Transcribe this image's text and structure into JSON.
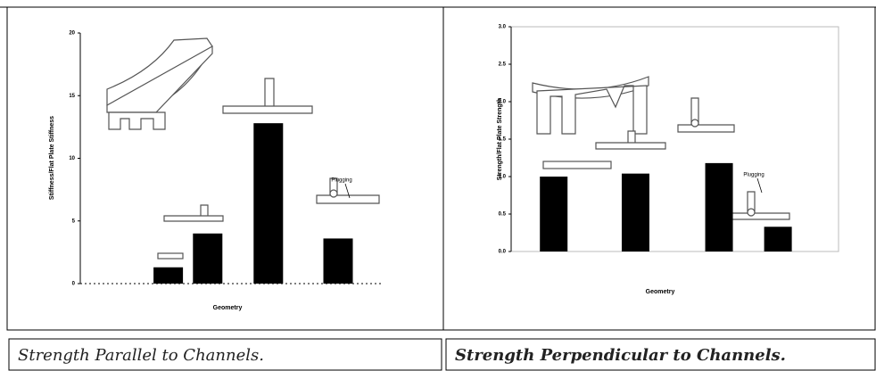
{
  "chart_data": [
    {
      "type": "bar",
      "ylabel": "Stiffness/Flat Plate Stiffness",
      "xlabel": "Geometry",
      "categories": [
        null,
        null,
        null,
        null
      ],
      "values": [
        1.3,
        4.0,
        12.8,
        3.6
      ],
      "color": "#000000",
      "ylim": [
        0,
        20
      ],
      "yticks": [
        0,
        5,
        10,
        15,
        20
      ],
      "grid": false,
      "annotation": "Plugging"
    },
    {
      "type": "bar",
      "ylabel": "Strength/Flat Plate Strength",
      "xlabel": "Geometry",
      "categories": [
        null,
        null,
        null,
        null
      ],
      "values": [
        1.0,
        1.04,
        1.18,
        0.33
      ],
      "color": "#000000",
      "ylim": [
        0,
        3
      ],
      "yticks": [
        {
          "value": 0,
          "label": "0.0"
        },
        {
          "value": 0.5,
          "label": "0.5"
        },
        {
          "value": 1,
          "label": "1.0"
        },
        {
          "value": 1.5,
          "label": "1.5"
        },
        {
          "value": 2,
          "label": "2.0"
        },
        {
          "value": 2.5,
          "label": "2.5"
        },
        {
          "value": 3,
          "label": "3.0"
        }
      ],
      "grid": false,
      "annotation": "Plugging"
    }
  ],
  "captions": [
    "Strength Parallel to Channels.",
    "Strength Perpendicular to Channels."
  ]
}
